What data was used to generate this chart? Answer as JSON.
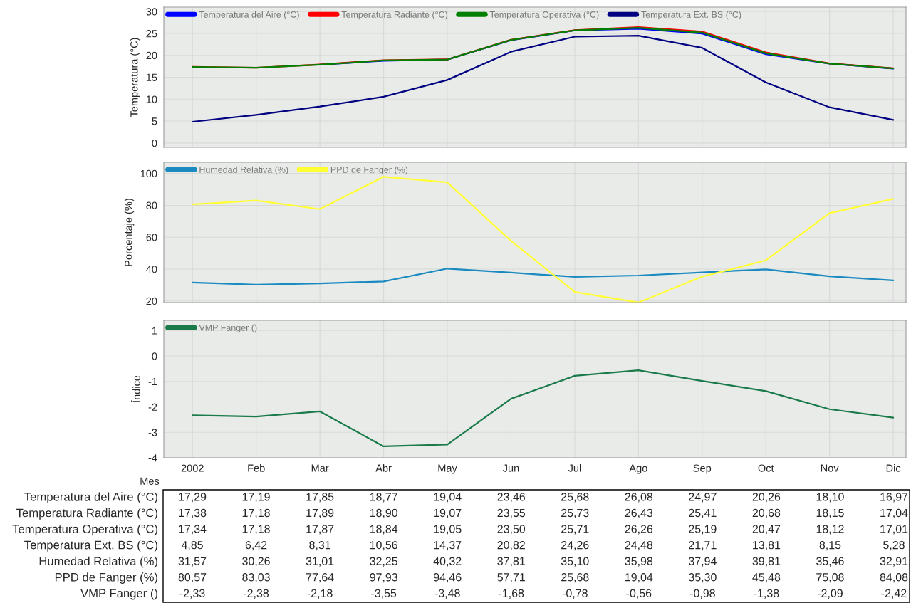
{
  "chart_data": [
    {
      "type": "line",
      "ylabel": "Temperatura (°C)",
      "ylim": [
        -1,
        31
      ],
      "yticks": [
        0,
        5,
        10,
        15,
        20,
        25,
        30
      ],
      "grid": true,
      "legend": "top left",
      "tick_labels": "y",
      "series": [
        {
          "name": "Temperatura del Aire (°C)",
          "color": "#0000ff",
          "values": [
            null,
            null,
            17.85,
            18.77,
            19.04,
            23.46,
            25.68,
            26.08,
            24.97,
            20.26,
            18.1,
            16.97
          ],
          "value_labels": [
            "17,29",
            "17,19",
            "17,85",
            "18,77",
            "19,04",
            "23,46",
            "25,68",
            "26,08",
            "24,97",
            "20,26",
            "18,10",
            "16,97"
          ]
        },
        {
          "name": "Temperatura Radiante (°C)",
          "color": "#ff0000",
          "values": [
            17.38,
            17.18,
            17.89,
            18.9,
            19.07,
            23.55,
            25.73,
            26.43,
            25.41,
            20.68,
            18.15,
            17.04
          ],
          "value_labels": [
            "17,38",
            "17,18",
            "17,89",
            "18,90",
            "19,07",
            "23,55",
            "25,73",
            "26,43",
            "25,41",
            "20,68",
            "18,15",
            "17,04"
          ]
        },
        {
          "name": "Temperatura Operativa (°C)",
          "color": "#008000",
          "values": [
            17.34,
            17.18,
            17.87,
            18.84,
            19.05,
            23.5,
            25.71,
            26.26,
            25.19,
            20.47,
            18.12,
            17.01
          ],
          "value_labels": [
            "17,34",
            "17,18",
            "17,87",
            "18,84",
            "19,05",
            "23,50",
            "25,71",
            "26,26",
            "25,19",
            "20,47",
            "18,12",
            "17,01"
          ]
        },
        {
          "name": "Temperatura Ext. BS (°C)",
          "color": "#000080",
          "values": [
            4.85,
            6.42,
            8.31,
            10.56,
            14.37,
            20.82,
            24.26,
            24.48,
            21.71,
            13.81,
            8.15,
            5.28
          ],
          "value_labels": [
            "4,85",
            "6,42",
            "8,31",
            "10,56",
            "14,37",
            "20,82",
            "24,26",
            "24,48",
            "21,71",
            "13,81",
            "8,15",
            "5,28"
          ]
        }
      ]
    },
    {
      "type": "line",
      "ylabel": "Porcentaje (%)",
      "ylim": [
        19,
        107
      ],
      "yticks": [
        20,
        40,
        60,
        80,
        100
      ],
      "grid": true,
      "legend": "top left",
      "tick_labels": "y",
      "series": [
        {
          "name": "Humedad Relativa (%)",
          "color": "#1a8ac0",
          "values": [
            31.57,
            30.26,
            31.01,
            32.25,
            40.32,
            37.81,
            35.1,
            35.98,
            37.94,
            39.81,
            35.46,
            32.91
          ],
          "value_labels": [
            "31,57",
            "30,26",
            "31,01",
            "32,25",
            "40,32",
            "37,81",
            "35,10",
            "35,98",
            "37,94",
            "39,81",
            "35,46",
            "32,91"
          ]
        },
        {
          "name": "PPD de Fanger (%)",
          "color": "#ffff33",
          "values": [
            80.57,
            83.03,
            77.64,
            97.93,
            94.46,
            57.71,
            25.68,
            19.04,
            35.3,
            45.48,
            75.08,
            84.08
          ],
          "value_labels": [
            "80,57",
            "83,03",
            "77,64",
            "97,93",
            "94,46",
            "57,71",
            "25,68",
            "19,04",
            "35,30",
            "45,48",
            "75,08",
            "84,08"
          ]
        }
      ]
    },
    {
      "type": "line",
      "ylabel": "Índice",
      "xlabel": "Mes",
      "categories": [
        "2002",
        "Feb",
        "Mar",
        "Abr",
        "May",
        "Jun",
        "Jul",
        "Ago",
        "Sep",
        "Oct",
        "Nov",
        "Dic"
      ],
      "ylim": [
        -4,
        1.4
      ],
      "yticks": [
        -4,
        -3,
        -2,
        -1,
        0,
        1
      ],
      "grid": true,
      "legend": "top left",
      "series": [
        {
          "name": "VMP Fanger ()",
          "color": "#1a7a4a",
          "values": [
            -2.33,
            -2.38,
            -2.18,
            -3.55,
            -3.48,
            -1.68,
            -0.78,
            -0.56,
            -0.98,
            -1.38,
            -2.09,
            -2.42
          ],
          "value_labels": [
            "-2,33",
            "-2,38",
            "-2,18",
            "-3,55",
            "-3,48",
            "-1,68",
            "-0,78",
            "-0,56",
            "-0,98",
            "-1,38",
            "-2,09",
            "-2,42"
          ]
        }
      ]
    }
  ]
}
